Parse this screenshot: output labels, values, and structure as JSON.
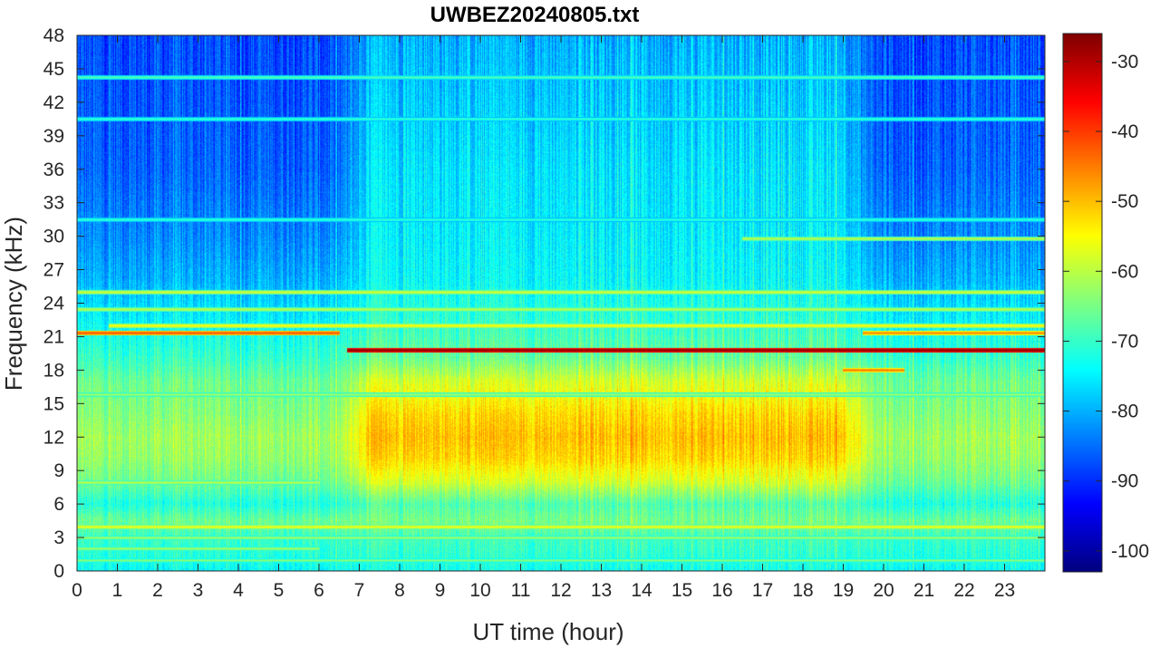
{
  "chart_data": {
    "type": "heatmap",
    "title": "UWBEZ20240805.txt",
    "xlabel": "UT time (hour)",
    "ylabel": "Frequency (kHz)",
    "xlim": [
      0,
      24
    ],
    "ylim": [
      0,
      48
    ],
    "x_ticks": [
      0,
      1,
      2,
      3,
      4,
      5,
      6,
      7,
      8,
      9,
      10,
      11,
      12,
      13,
      14,
      15,
      16,
      17,
      18,
      19,
      20,
      21,
      22,
      23
    ],
    "y_ticks": [
      0,
      3,
      6,
      9,
      12,
      15,
      18,
      21,
      24,
      27,
      30,
      33,
      36,
      39,
      42,
      45,
      48
    ],
    "colorbar": {
      "colormap": "jet",
      "range": [
        -103,
        -26
      ],
      "ticks": [
        -30,
        -40,
        -50,
        -60,
        -70,
        -80,
        -90,
        -100
      ]
    },
    "grid": false,
    "background_profile": {
      "description_of_units": "level in colorbar units per frequency band",
      "freq_kHz": [
        0,
        1,
        3,
        4.5,
        6,
        8,
        10,
        12,
        14,
        17,
        19,
        22,
        24,
        26,
        30,
        36,
        42,
        48
      ],
      "level_night": [
        -74,
        -72,
        -70,
        -66,
        -72,
        -66,
        -63,
        -62,
        -64,
        -66,
        -70,
        -74,
        -77,
        -80,
        -83,
        -86,
        -87,
        -88
      ],
      "level_day": [
        -73,
        -71,
        -69,
        -65,
        -68,
        -58,
        -52,
        -50,
        -52,
        -58,
        -66,
        -70,
        -72,
        -74,
        -75,
        -76,
        -78,
        -80
      ]
    },
    "day_window_hours": [
      6.5,
      19.8
    ],
    "narrowband_lines": [
      {
        "freq_kHz": 19.8,
        "t_start": 6.7,
        "t_end": 24,
        "level": -27
      },
      {
        "freq_kHz": 21.4,
        "t_start": 0,
        "t_end": 6.5,
        "level": -42
      },
      {
        "freq_kHz": 21.4,
        "t_start": 19.5,
        "t_end": 24,
        "level": -46
      },
      {
        "freq_kHz": 22.0,
        "t_start": 0.8,
        "t_end": 24,
        "level": -55
      },
      {
        "freq_kHz": 25.0,
        "t_start": 0,
        "t_end": 24,
        "level": -58
      },
      {
        "freq_kHz": 23.5,
        "t_start": 0,
        "t_end": 24,
        "level": -60
      },
      {
        "freq_kHz": 4.0,
        "t_start": 0,
        "t_end": 24,
        "level": -56
      },
      {
        "freq_kHz": 3.0,
        "t_start": 0,
        "t_end": 24,
        "level": -62
      },
      {
        "freq_kHz": 2.0,
        "t_start": 0,
        "t_end": 6,
        "level": -62
      },
      {
        "freq_kHz": 1.0,
        "t_start": 0,
        "t_end": 24,
        "level": -64
      },
      {
        "freq_kHz": 44.3,
        "t_start": 0,
        "t_end": 24,
        "level": -68
      },
      {
        "freq_kHz": 40.5,
        "t_start": 0,
        "t_end": 24,
        "level": -70
      },
      {
        "freq_kHz": 31.5,
        "t_start": 0,
        "t_end": 24,
        "level": -70
      },
      {
        "freq_kHz": 29.8,
        "t_start": 16.5,
        "t_end": 24,
        "level": -60
      },
      {
        "freq_kHz": 18.0,
        "t_start": 19.0,
        "t_end": 20.5,
        "level": -45
      },
      {
        "freq_kHz": 15.8,
        "t_start": 0,
        "t_end": 24,
        "level": -62
      },
      {
        "freq_kHz": 8.0,
        "t_start": 0,
        "t_end": 6,
        "level": -60
      }
    ]
  }
}
